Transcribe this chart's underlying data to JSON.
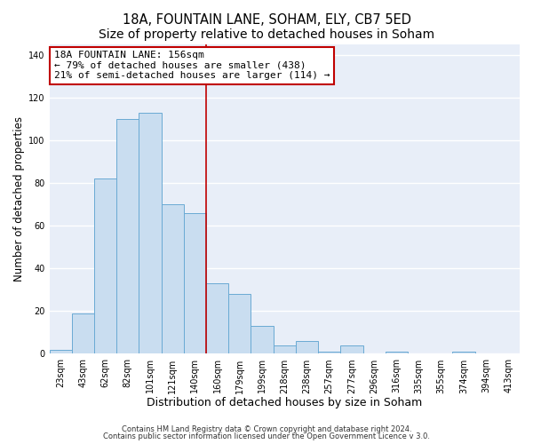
{
  "title": "18A, FOUNTAIN LANE, SOHAM, ELY, CB7 5ED",
  "subtitle": "Size of property relative to detached houses in Soham",
  "xlabel": "Distribution of detached houses by size in Soham",
  "ylabel": "Number of detached properties",
  "bar_labels": [
    "23sqm",
    "43sqm",
    "62sqm",
    "82sqm",
    "101sqm",
    "121sqm",
    "140sqm",
    "160sqm",
    "179sqm",
    "199sqm",
    "218sqm",
    "238sqm",
    "257sqm",
    "277sqm",
    "296sqm",
    "316sqm",
    "335sqm",
    "355sqm",
    "374sqm",
    "394sqm",
    "413sqm"
  ],
  "bar_values": [
    2,
    19,
    82,
    110,
    113,
    70,
    66,
    33,
    28,
    13,
    4,
    6,
    1,
    4,
    0,
    1,
    0,
    0,
    1,
    0,
    0
  ],
  "bar_color": "#c9ddf0",
  "bar_edge_color": "#6aaad4",
  "vline_color": "#c00000",
  "ylim": [
    0,
    145
  ],
  "yticks": [
    0,
    20,
    40,
    60,
    80,
    100,
    120,
    140
  ],
  "annotation_title": "18A FOUNTAIN LANE: 156sqm",
  "annotation_line1": "← 79% of detached houses are smaller (438)",
  "annotation_line2": "21% of semi-detached houses are larger (114) →",
  "annotation_box_facecolor": "#ffffff",
  "annotation_box_edgecolor": "#c00000",
  "footnote1": "Contains HM Land Registry data © Crown copyright and database right 2024.",
  "footnote2": "Contains public sector information licensed under the Open Government Licence v 3.0.",
  "figure_facecolor": "#ffffff",
  "axes_facecolor": "#e8eef8",
  "grid_color": "#ffffff",
  "title_fontsize": 10.5,
  "xlabel_fontsize": 9,
  "ylabel_fontsize": 8.5,
  "tick_fontsize": 7,
  "annotation_fontsize": 8,
  "footnote_fontsize": 6
}
